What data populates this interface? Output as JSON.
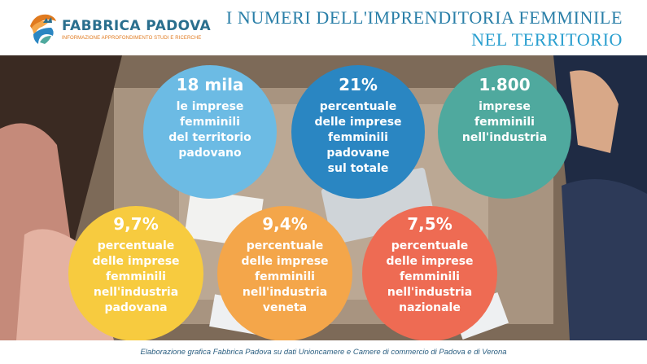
{
  "brand": {
    "name": "FABBRICA PADOVA",
    "tagline": "INFORMAZIONE APPROFONDIMENTO STUDI E RICERCHE"
  },
  "title": {
    "line1": "I NUMERI DELL'IMPRENDITORIA FEMMINILE",
    "line2": "NEL TERRITORIO"
  },
  "stats": [
    {
      "value": "18 mila",
      "text": [
        "le imprese",
        "femminili",
        "del territorio",
        "padovano"
      ],
      "color": "#6cbbe4"
    },
    {
      "value": "21%",
      "text": [
        "percentuale",
        "delle imprese",
        "femminili",
        "padovane",
        "sul totale"
      ],
      "color": "#2a86c2"
    },
    {
      "value": "1.800",
      "text": [
        "imprese",
        "femminili",
        "nell'industria"
      ],
      "color": "#4fa99e"
    },
    {
      "value": "9,7%",
      "text": [
        "percentuale",
        "delle imprese",
        "femminili",
        "nell'industria",
        "padovana"
      ],
      "color": "#f7cb3f"
    },
    {
      "value": "9,4%",
      "text": [
        "percentuale",
        "delle imprese",
        "femminili",
        "nell'industria",
        "veneta"
      ],
      "color": "#f4a64a"
    },
    {
      "value": "7,5%",
      "text": [
        "percentuale",
        "delle imprese",
        "femminili",
        "nell'industria",
        "nazionale"
      ],
      "color": "#ee6b53"
    }
  ],
  "footer": {
    "credit": "Elaborazione grafica Fabbrica Padova su dati Unioncamere e Camere di commercio di Padova e di Verona"
  }
}
